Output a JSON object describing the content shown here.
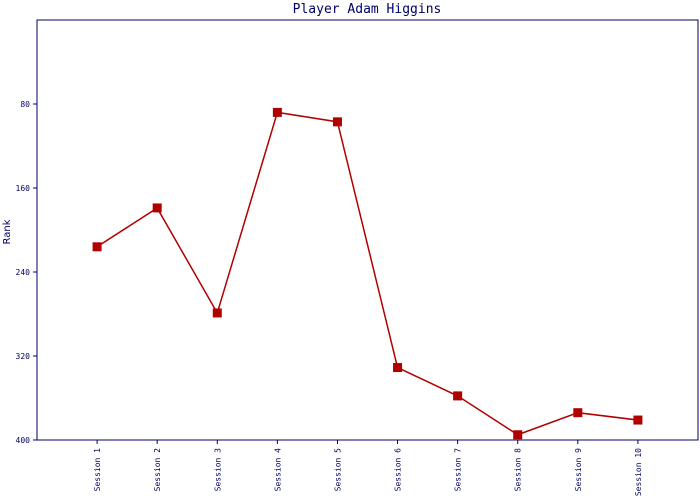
{
  "chart_data": {
    "type": "line",
    "title": "Player Adam Higgins",
    "y_label": "Rank",
    "categories": [
      "Session 1",
      "Session 2",
      "Session 3",
      "Session 4",
      "Session 5",
      "Session 6",
      "Session 7",
      "Session 8",
      "Session 9",
      "Session 10"
    ],
    "values": [
      216,
      179,
      279,
      88,
      97,
      331,
      358,
      395,
      374,
      381
    ],
    "color": "#b00000",
    "ylim": [
      400,
      0
    ],
    "yticks": [
      80,
      160,
      240,
      320,
      400
    ]
  }
}
